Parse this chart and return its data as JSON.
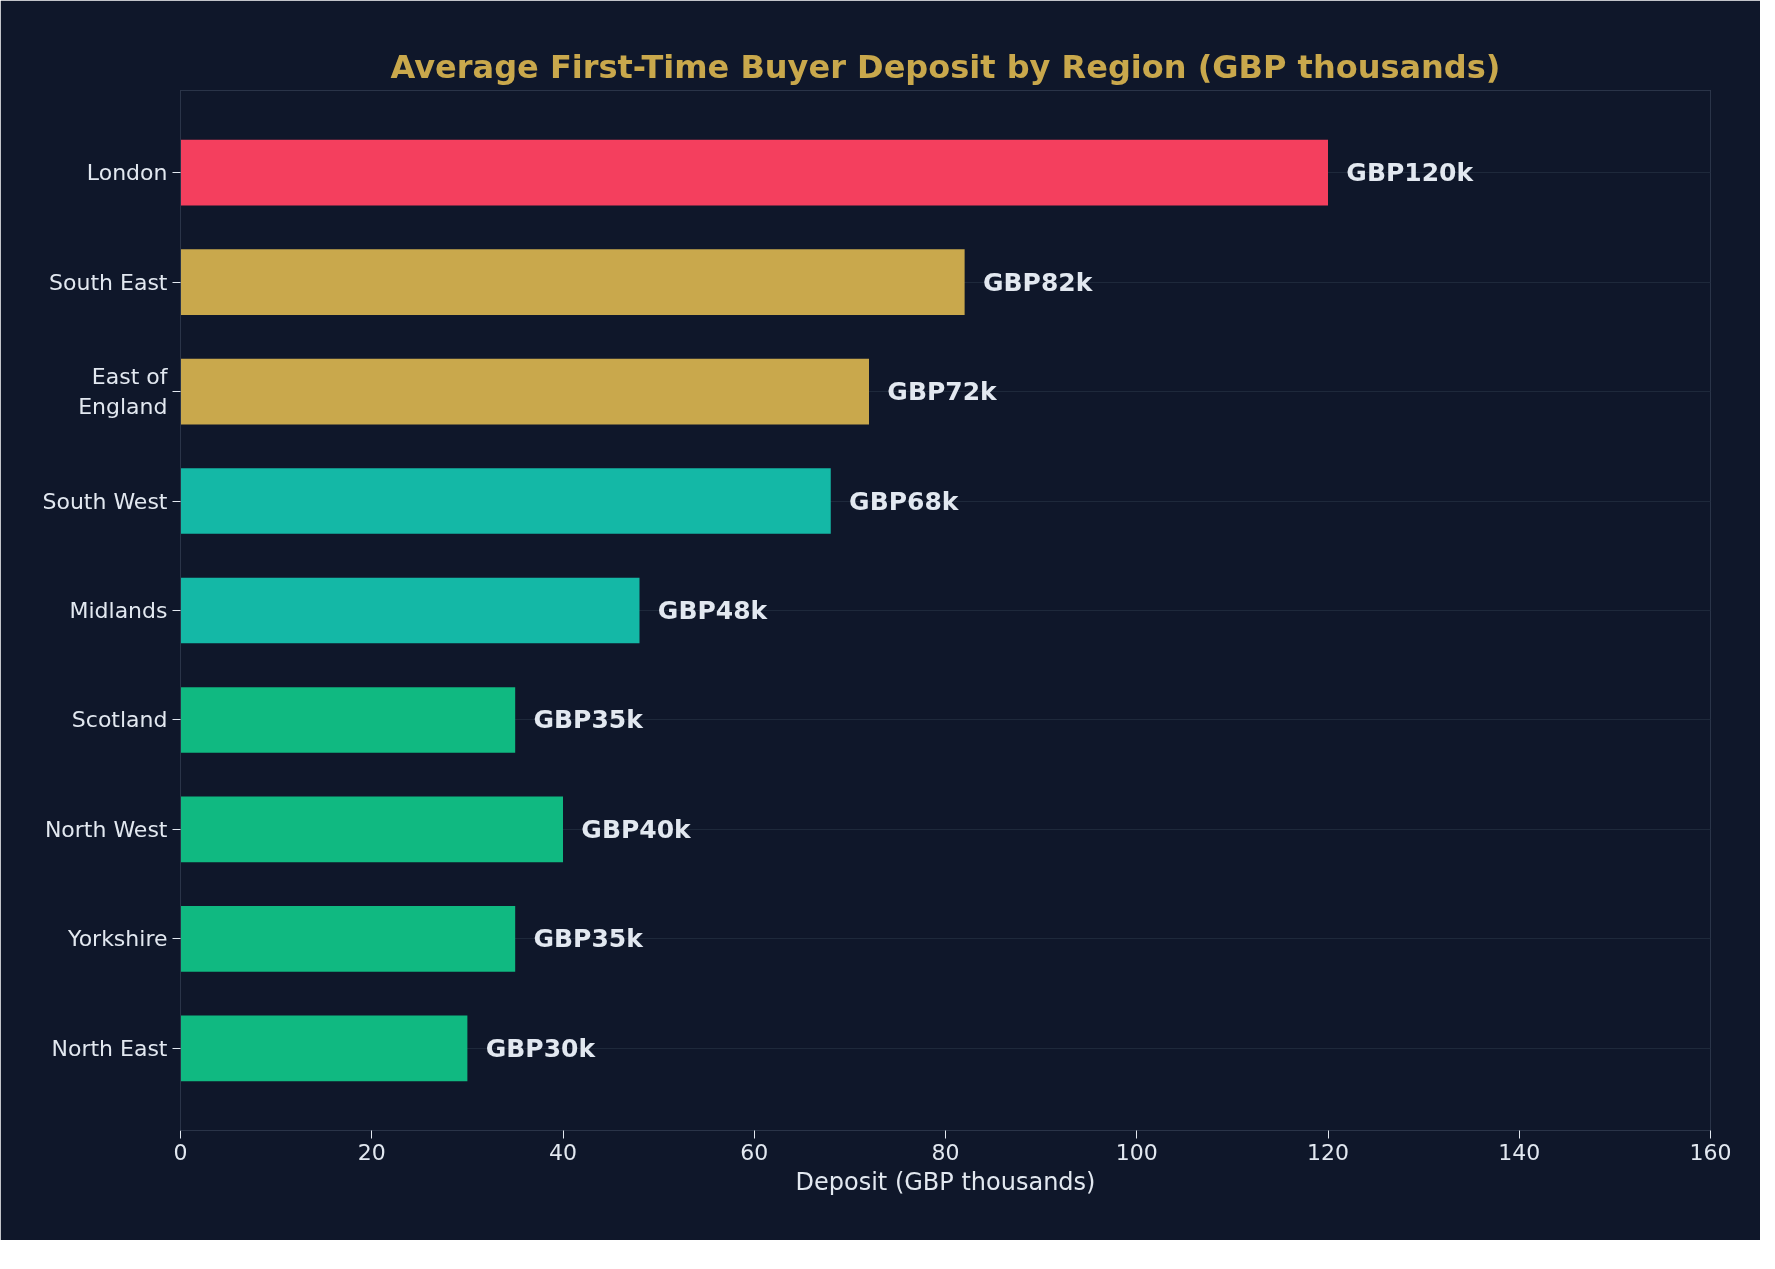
{
  "chart_data": {
    "type": "bar",
    "orientation": "horizontal",
    "title": "Average First-Time Buyer Deposit by Region (GBP thousands)",
    "xlabel": "Deposit (GBP thousands)",
    "categories": [
      "London",
      "South East",
      "East of England",
      "South West",
      "Midlands",
      "Scotland",
      "North West",
      "Yorkshire",
      "North East"
    ],
    "values": [
      120,
      82,
      72,
      68,
      48,
      35,
      40,
      35,
      30
    ],
    "colors": [
      "#f43f5e",
      "#c9a84c",
      "#c9a84c",
      "#14b8a6",
      "#14b8a6",
      "#10b981",
      "#10b981",
      "#10b981",
      "#10b981"
    ],
    "value_labels": [
      "GBP120k",
      "GBP82k",
      "GBP72k",
      "GBP68k",
      "GBP48k",
      "GBP35k",
      "GBP40k",
      "GBP35k",
      "GBP30k"
    ],
    "xlim": [
      0,
      160
    ],
    "xticks": [
      0,
      20,
      40,
      60,
      80,
      100,
      120,
      140,
      160
    ],
    "grid": "y"
  }
}
